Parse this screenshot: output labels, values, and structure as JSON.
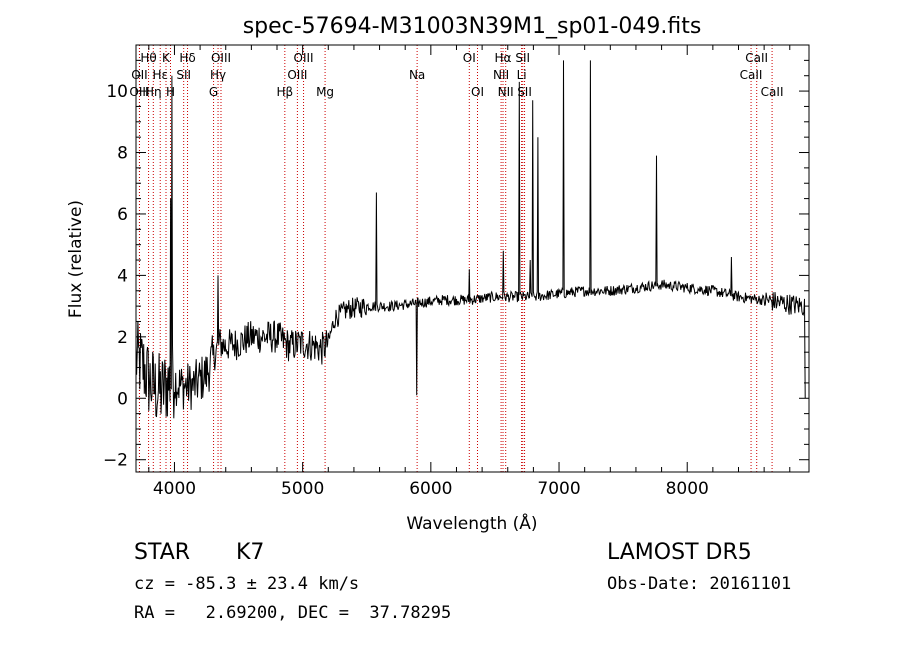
{
  "chart_data": {
    "type": "line",
    "title": "spec-57694-M31003N39M1_sp01-049.fits",
    "xlabel": "Wavelength (Å)",
    "ylabel": "Flux (relative)",
    "xlim": [
      3700,
      8950
    ],
    "ylim": [
      -2.4,
      11.5
    ],
    "xticks": [
      4000,
      5000,
      6000,
      7000,
      8000
    ],
    "yticks": [
      -2,
      0,
      2,
      4,
      6,
      8,
      10
    ],
    "grid": false,
    "legend": "none",
    "line_color": "#000000",
    "marker_color": "#cc0000",
    "spectrum": {
      "name": "",
      "anchors": [
        [
          3700,
          1.3
        ],
        [
          3760,
          1.0
        ],
        [
          3800,
          0.6
        ],
        [
          3850,
          0.3
        ],
        [
          3900,
          0.2
        ],
        [
          3950,
          0.5
        ],
        [
          4000,
          0.6
        ],
        [
          4050,
          0.4
        ],
        [
          4100,
          0.4
        ],
        [
          4150,
          0.4
        ],
        [
          4200,
          0.6
        ],
        [
          4250,
          0.8
        ],
        [
          4300,
          1.3
        ],
        [
          4350,
          1.8
        ],
        [
          4400,
          1.7
        ],
        [
          4500,
          1.8
        ],
        [
          4600,
          2.0
        ],
        [
          4700,
          2.0
        ],
        [
          4800,
          2.0
        ],
        [
          4900,
          1.7
        ],
        [
          5000,
          1.8
        ],
        [
          5100,
          1.7
        ],
        [
          5150,
          1.6
        ],
        [
          5200,
          1.8
        ],
        [
          5250,
          2.6
        ],
        [
          5350,
          2.9
        ],
        [
          5500,
          3.0
        ],
        [
          5700,
          3.0
        ],
        [
          5900,
          3.1
        ],
        [
          6100,
          3.2
        ],
        [
          6300,
          3.2
        ],
        [
          6500,
          3.3
        ],
        [
          6700,
          3.3
        ],
        [
          6800,
          3.3
        ],
        [
          7000,
          3.4
        ],
        [
          7200,
          3.5
        ],
        [
          7400,
          3.5
        ],
        [
          7600,
          3.6
        ],
        [
          7800,
          3.7
        ],
        [
          8000,
          3.6
        ],
        [
          8200,
          3.5
        ],
        [
          8400,
          3.3
        ],
        [
          8600,
          3.2
        ],
        [
          8750,
          3.1
        ],
        [
          8900,
          3.0
        ]
      ],
      "features": [
        {
          "wavelength": 3972,
          "value": 6.5
        },
        {
          "wavelength": 3980,
          "value": 10.5
        },
        {
          "wavelength": 4340,
          "value": 4.0
        },
        {
          "wavelength": 5577,
          "value": 6.7
        },
        {
          "wavelength": 5890,
          "value": 0.1
        },
        {
          "wavelength": 6300,
          "value": 4.2
        },
        {
          "wavelength": 6563,
          "value": 4.8
        },
        {
          "wavelength": 6690,
          "value": 10.3
        },
        {
          "wavelength": 6775,
          "value": 4.5
        },
        {
          "wavelength": 6795,
          "value": 9.7
        },
        {
          "wavelength": 6833,
          "value": 8.5
        },
        {
          "wavelength": 7037,
          "value": 11.0
        },
        {
          "wavelength": 7243,
          "value": 11.0
        },
        {
          "wavelength": 7760,
          "value": 7.9
        },
        {
          "wavelength": 8345,
          "value": 4.6
        },
        {
          "wavelength": 8920,
          "value": 0.0
        }
      ]
    },
    "line_markers": [
      {
        "label": "Hθ",
        "wavelength": 3798,
        "row": 1
      },
      {
        "label": "OII",
        "wavelength": 3727,
        "row": 2
      },
      {
        "label": "Hη",
        "wavelength": 3835,
        "row": 3
      },
      {
        "label": "OIII",
        "wavelength": 3727,
        "row": 3
      },
      {
        "label": "K",
        "wavelength": 3934,
        "row": 1
      },
      {
        "label": "Hε",
        "wavelength": 3889,
        "row": 2
      },
      {
        "label": "H",
        "wavelength": 3969,
        "row": 3
      },
      {
        "label": "Hδ",
        "wavelength": 4102,
        "row": 1
      },
      {
        "label": "SII",
        "wavelength": 4072,
        "row": 2
      },
      {
        "label": "OIII",
        "wavelength": 4363,
        "row": 1
      },
      {
        "label": "Hγ",
        "wavelength": 4340,
        "row": 2
      },
      {
        "label": "G",
        "wavelength": 4305,
        "row": 3
      },
      {
        "label": "Hβ",
        "wavelength": 4861,
        "row": 3
      },
      {
        "label": "OIII",
        "wavelength": 5007,
        "row": 1
      },
      {
        "label": "OIII",
        "wavelength": 4959,
        "row": 2
      },
      {
        "label": "Mg",
        "wavelength": 5175,
        "row": 3
      },
      {
        "label": "Na",
        "wavelength": 5893,
        "row": 2
      },
      {
        "label": "OI",
        "wavelength": 6300,
        "row": 1
      },
      {
        "label": "OI",
        "wavelength": 6364,
        "row": 3
      },
      {
        "label": "Hα",
        "wavelength": 6563,
        "row": 1
      },
      {
        "label": "NII",
        "wavelength": 6548,
        "row": 2
      },
      {
        "label": "NII",
        "wavelength": 6584,
        "row": 3
      },
      {
        "label": "SII",
        "wavelength": 6717,
        "row": 1
      },
      {
        "label": "Li",
        "wavelength": 6708,
        "row": 2
      },
      {
        "label": "SII",
        "wavelength": 6731,
        "row": 3
      },
      {
        "label": "CaII",
        "wavelength": 8498,
        "row": 2
      },
      {
        "label": "CaII",
        "wavelength": 8542,
        "row": 1
      },
      {
        "label": "CaII",
        "wavelength": 8662,
        "row": 3
      }
    ]
  },
  "info": {
    "object_class": "STAR",
    "subclass": "K7",
    "survey": "LAMOST DR5",
    "redshift_line": "cz = -85.3 ± 23.4 km/s",
    "obs_date_line": "Obs-Date: 20161101",
    "coords_line": "RA =   2.69200, DEC =  37.78295"
  }
}
